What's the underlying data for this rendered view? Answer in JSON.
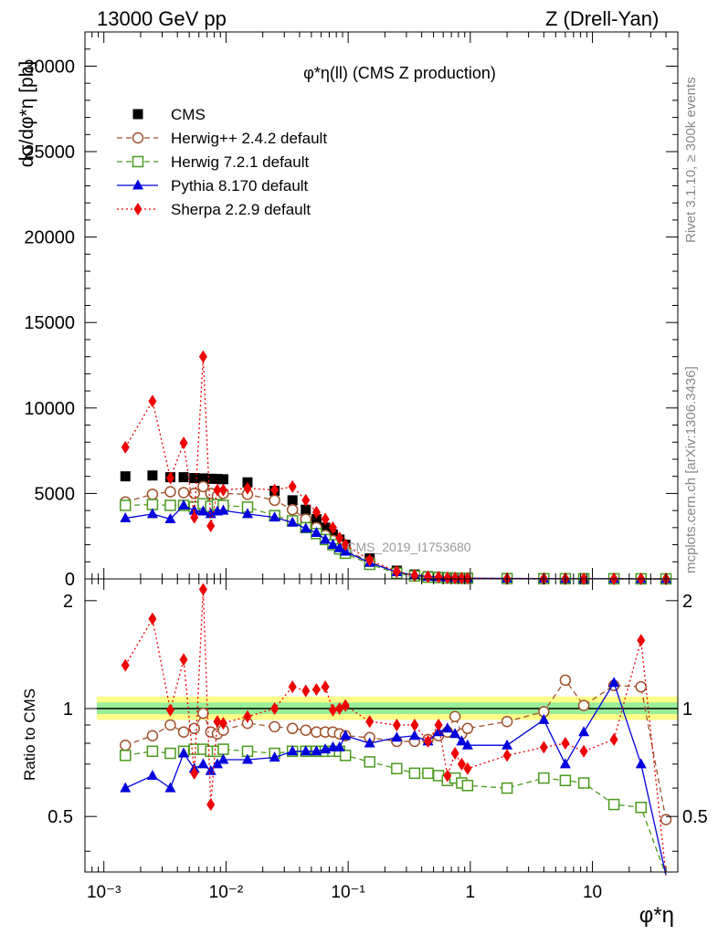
{
  "header": {
    "left": "13000 GeV pp",
    "right": "Z (Drell-Yan)"
  },
  "side_labels": {
    "rivet": "Rivet 3.1.10, ≥ 300k events",
    "mcplots": "mcplots.cern.ch [arXiv:1306.3436]"
  },
  "watermark": "CMS_2019_I1753680",
  "colors": {
    "CMS": "#000000",
    "Herwig++ 2.4.2 default": "#a0522d",
    "Herwig 7.2.1 default": "#4a9a1f",
    "Pythia 8.170 default": "#0000dd",
    "Sherpa 2.2.9 default": "#ee0000",
    "band_outer": "#ffff88",
    "band_inner": "#99ee99"
  },
  "chart_data": [
    {
      "type": "scatter",
      "panel": "main",
      "title": "φ*η(ll) (CMS Z production)",
      "xlabel": "φ*η",
      "ylabel": "dσ/dφ*η [pb]",
      "xscale": "log",
      "xlim": [
        0.0007,
        50
      ],
      "ylim": [
        0,
        32000
      ],
      "yticks": [
        0,
        5000,
        10000,
        15000,
        20000,
        25000,
        30000
      ],
      "xtick_labels": [
        "10⁻³",
        "10⁻²",
        "10⁻¹",
        "1",
        "10"
      ],
      "grid": false,
      "legend_position": "top-left",
      "x": [
        0.0015,
        0.0025,
        0.0035,
        0.0045,
        0.0055,
        0.0065,
        0.0075,
        0.0085,
        0.0095,
        0.015,
        0.025,
        0.035,
        0.045,
        0.055,
        0.065,
        0.075,
        0.085,
        0.095,
        0.15,
        0.25,
        0.35,
        0.45,
        0.55,
        0.65,
        0.75,
        0.85,
        0.95,
        2,
        4,
        6,
        8.5,
        15,
        25,
        40
      ],
      "series": [
        {
          "name": "CMS",
          "marker": "square-filled",
          "line": "none",
          "values": [
            6000,
            6050,
            5950,
            5950,
            5900,
            5880,
            5860,
            5850,
            5830,
            5650,
            5150,
            4600,
            4050,
            3500,
            3000,
            2600,
            2300,
            2000,
            1200,
            480,
            260,
            160,
            120,
            90,
            70,
            60,
            50,
            30,
            20,
            15,
            10,
            8,
            5,
            3
          ]
        },
        {
          "name": "Herwig++ 2.4.2 default",
          "marker": "circle-open",
          "line": "dashed",
          "values": [
            4500,
            4950,
            5100,
            5050,
            5000,
            5400,
            5000,
            4850,
            5000,
            4950,
            4600,
            4050,
            3500,
            3000,
            2550,
            2250,
            1950,
            1700,
            1000,
            390,
            210,
            130,
            100,
            70,
            60,
            50,
            40,
            25,
            18,
            15,
            10,
            8,
            5,
            2
          ]
        },
        {
          "name": "Herwig 7.2.1 default",
          "marker": "square-open",
          "line": "dashed",
          "values": [
            4300,
            4350,
            4300,
            4300,
            4200,
            4400,
            4250,
            4350,
            4300,
            4200,
            3700,
            3400,
            3000,
            2650,
            2300,
            2000,
            1750,
            1500,
            850,
            330,
            170,
            100,
            80,
            55,
            45,
            40,
            35,
            20,
            12,
            10,
            7,
            5,
            3,
            1
          ]
        },
        {
          "name": "Pythia 8.170 default",
          "marker": "triangle-filled",
          "line": "solid",
          "values": [
            3550,
            3800,
            3500,
            4300,
            4000,
            3950,
            3800,
            3950,
            4000,
            3800,
            3600,
            3300,
            2950,
            2700,
            2300,
            2000,
            1800,
            1600,
            950,
            400,
            220,
            130,
            110,
            80,
            60,
            50,
            40,
            25,
            20,
            10,
            8,
            9,
            2,
            0
          ]
        },
        {
          "name": "Sherpa 2.2.9 default",
          "marker": "diamond-filled",
          "line": "dotted",
          "values": [
            7700,
            10400,
            5900,
            7950,
            3600,
            13000,
            3100,
            5200,
            5200,
            5300,
            5200,
            5400,
            4600,
            3900,
            3500,
            3000,
            2400,
            2000,
            1100,
            430,
            200,
            130,
            110,
            60,
            50,
            40,
            35,
            20,
            15,
            12,
            8,
            6,
            7,
            1
          ]
        }
      ]
    },
    {
      "type": "line",
      "panel": "ratio",
      "xlabel": "φ*η",
      "ylabel": "Ratio to CMS",
      "xscale": "log",
      "xlim": [
        0.0007,
        50
      ],
      "ylim": [
        0.35,
        2.3
      ],
      "yticks": [
        0.5,
        1,
        2
      ],
      "x": [
        0.0015,
        0.0025,
        0.0035,
        0.0045,
        0.0055,
        0.0065,
        0.0075,
        0.0085,
        0.0095,
        0.015,
        0.025,
        0.035,
        0.045,
        0.055,
        0.065,
        0.075,
        0.085,
        0.095,
        0.15,
        0.25,
        0.35,
        0.45,
        0.55,
        0.65,
        0.75,
        0.85,
        0.95,
        2,
        4,
        6,
        8.5,
        15,
        25,
        40
      ],
      "series": [
        {
          "name": "Herwig++ 2.4.2 default",
          "values": [
            0.79,
            0.84,
            0.9,
            0.86,
            0.88,
            0.97,
            0.86,
            0.85,
            0.87,
            0.91,
            0.89,
            0.88,
            0.87,
            0.86,
            0.86,
            0.86,
            0.85,
            0.84,
            0.83,
            0.81,
            0.81,
            0.82,
            0.84,
            0.86,
            0.95,
            0.85,
            0.88,
            0.92,
            0.98,
            1.2,
            1.02,
            1.16,
            1.15,
            0.49
          ]
        },
        {
          "name": "Herwig 7.2.1 default",
          "values": [
            0.74,
            0.76,
            0.75,
            0.76,
            0.77,
            0.77,
            0.76,
            0.76,
            0.77,
            0.76,
            0.75,
            0.76,
            0.76,
            0.76,
            0.76,
            0.76,
            0.76,
            0.74,
            0.71,
            0.68,
            0.66,
            0.66,
            0.65,
            0.63,
            0.64,
            0.62,
            0.61,
            0.6,
            0.64,
            0.63,
            0.62,
            0.54,
            0.53,
            0.3
          ]
        },
        {
          "name": "Pythia 8.170 default",
          "values": [
            0.6,
            0.65,
            0.6,
            0.75,
            0.68,
            0.7,
            0.67,
            0.7,
            0.72,
            0.72,
            0.73,
            0.76,
            0.76,
            0.76,
            0.77,
            0.78,
            0.78,
            0.84,
            0.8,
            0.83,
            0.84,
            0.81,
            0.86,
            0.88,
            0.85,
            0.81,
            0.79,
            0.79,
            0.93,
            0.7,
            0.86,
            1.18,
            0.7,
            0.0
          ]
        },
        {
          "name": "Sherpa 2.2.9 default",
          "values": [
            1.32,
            1.78,
            0.99,
            1.37,
            0.66,
            2.15,
            0.54,
            0.92,
            0.91,
            0.95,
            1.0,
            1.15,
            1.12,
            1.13,
            1.15,
            0.99,
            1.0,
            1.02,
            0.92,
            0.9,
            0.9,
            0.81,
            0.9,
            0.65,
            0.75,
            0.7,
            0.68,
            0.74,
            0.78,
            0.8,
            0.76,
            0.82,
            1.55,
            0.3
          ]
        }
      ]
    }
  ]
}
